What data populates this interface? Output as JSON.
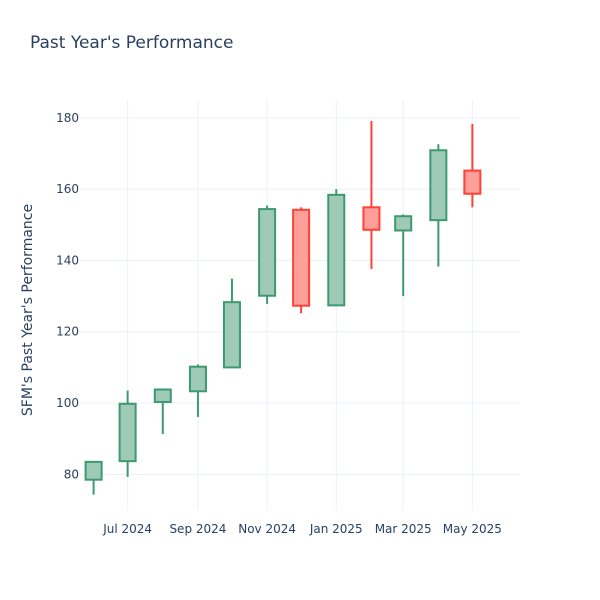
{
  "chart_data": {
    "type": "candlestick",
    "title": "Past Year's Performance",
    "xlabel": "",
    "ylabel": "SFM's Past Year's Performance",
    "ylim": [
      70,
      185
    ],
    "yticks": [
      80,
      100,
      120,
      140,
      160,
      180
    ],
    "xlim": [
      "2024-05-20",
      "2025-06-12"
    ],
    "xticks": [
      {
        "date": "2024-07-01",
        "label": "Jul 2024"
      },
      {
        "date": "2024-09-01",
        "label": "Sep 2024"
      },
      {
        "date": "2024-11-01",
        "label": "Nov 2024"
      },
      {
        "date": "2025-01-01",
        "label": "Jan 2025"
      },
      {
        "date": "2025-03-01",
        "label": "Mar 2025"
      },
      {
        "date": "2025-05-01",
        "label": "May 2025"
      }
    ],
    "grid": true,
    "colors": {
      "increasing_line": "#3d9970",
      "increasing_fill": "#9ecab7",
      "decreasing_line": "#ff4136",
      "decreasing_fill": "#ff9f9a",
      "grid": "#ebf0f8",
      "text": "#2a3f5f"
    },
    "candles": [
      {
        "date": "2024-06-01",
        "open": 78.5,
        "high": 83.5,
        "low": 74.3,
        "close": 83.5
      },
      {
        "date": "2024-07-01",
        "open": 83.7,
        "high": 103.5,
        "low": 79.3,
        "close": 99.8
      },
      {
        "date": "2024-08-01",
        "open": 100.3,
        "high": 104.0,
        "low": 91.3,
        "close": 103.8
      },
      {
        "date": "2024-09-01",
        "open": 103.3,
        "high": 110.8,
        "low": 96.1,
        "close": 110.2
      },
      {
        "date": "2024-10-01",
        "open": 110.0,
        "high": 134.9,
        "low": 109.8,
        "close": 128.3
      },
      {
        "date": "2024-11-01",
        "open": 130.1,
        "high": 155.4,
        "low": 127.8,
        "close": 154.4
      },
      {
        "date": "2024-12-01",
        "open": 154.2,
        "high": 154.9,
        "low": 125.2,
        "close": 127.3
      },
      {
        "date": "2025-01-01",
        "open": 127.4,
        "high": 160.0,
        "low": 127.2,
        "close": 158.4
      },
      {
        "date": "2025-02-01",
        "open": 154.9,
        "high": 179.1,
        "low": 137.6,
        "close": 148.6
      },
      {
        "date": "2025-03-01",
        "open": 148.4,
        "high": 152.9,
        "low": 130.0,
        "close": 152.4
      },
      {
        "date": "2025-04-01",
        "open": 151.3,
        "high": 172.6,
        "low": 138.3,
        "close": 170.9
      },
      {
        "date": "2025-05-01",
        "open": 165.2,
        "high": 178.3,
        "low": 154.9,
        "close": 158.7
      }
    ]
  }
}
